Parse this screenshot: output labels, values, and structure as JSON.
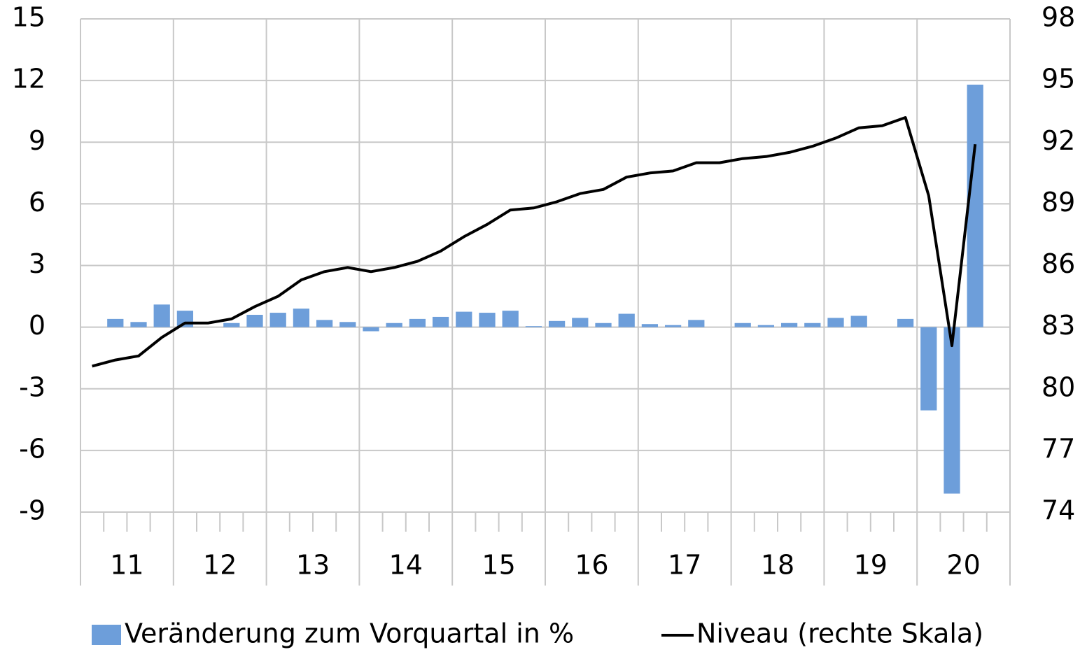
{
  "chart_data": {
    "type": "bar_line",
    "groups": [
      "11",
      "12",
      "13",
      "14",
      "15",
      "16",
      "17",
      "18",
      "19",
      "20"
    ],
    "categories": [
      null,
      null,
      null,
      null,
      null,
      null,
      null,
      null,
      null,
      null,
      null,
      null,
      null,
      null,
      null,
      null,
      null,
      null,
      null,
      null,
      null,
      null,
      null,
      null,
      null,
      null,
      null,
      null,
      null,
      null,
      null,
      null,
      null,
      null,
      null,
      null,
      null,
      null,
      null,
      null
    ],
    "series": [
      {
        "name": "Veränderung zum Vorquartal in %",
        "color": "#6d9eda",
        "kind": "bar",
        "values": [
          null,
          0.4,
          0.25,
          1.1,
          0.8,
          0.0,
          0.2,
          0.6,
          0.7,
          0.9,
          0.35,
          0.25,
          -0.2,
          0.2,
          0.4,
          0.5,
          0.75,
          0.7,
          0.8,
          0.05,
          0.3,
          0.45,
          0.2,
          0.65,
          0.15,
          0.1,
          0.35,
          0.0,
          0.2,
          0.1,
          0.2,
          0.2,
          0.45,
          0.55,
          0.0,
          0.4,
          -4.05,
          -8.1,
          11.8,
          null
        ]
      },
      {
        "name": "Niveau (rechte Skala)",
        "color": "#000000",
        "kind": "line",
        "axis": "y2",
        "values": [
          81.1,
          81.4,
          81.6,
          82.5,
          83.2,
          83.2,
          83.4,
          84.0,
          84.5,
          85.3,
          85.7,
          85.9,
          85.7,
          85.9,
          86.2,
          86.7,
          87.4,
          88.0,
          88.7,
          88.8,
          89.1,
          89.5,
          89.7,
          90.3,
          90.5,
          90.6,
          91.0,
          91.0,
          91.2,
          91.3,
          91.5,
          91.8,
          92.2,
          92.7,
          92.8,
          93.2,
          89.4,
          82.1,
          91.9,
          null
        ]
      }
    ],
    "ylim": [
      -9,
      15
    ],
    "yticks": [
      -9,
      -6,
      -3,
      0,
      3,
      6,
      9,
      12,
      15
    ],
    "y2lim": [
      74,
      98
    ],
    "y2ticks": [
      74,
      77,
      80,
      83,
      86,
      89,
      92,
      95,
      98
    ],
    "grid": true,
    "legend": "bottom"
  }
}
